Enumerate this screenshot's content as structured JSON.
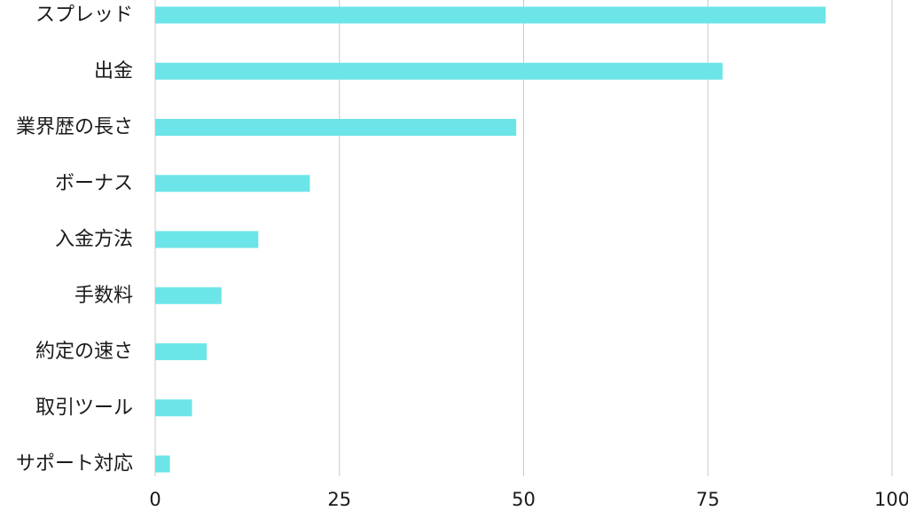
{
  "chart_data": {
    "type": "bar",
    "orientation": "horizontal",
    "categories": [
      "スプレッド",
      "出金",
      "業界歴の長さ",
      "ボーナス",
      "入金方法",
      "手数料",
      "約定の速さ",
      "取引ツール",
      "サポート対応"
    ],
    "values": [
      91,
      77,
      49,
      21,
      14,
      9,
      7,
      5,
      2
    ],
    "xlim": [
      0,
      100
    ],
    "x_ticks": [
      0,
      25,
      50,
      75,
      100
    ],
    "x_tick_labels": [
      "0",
      "25",
      "50",
      "75",
      "100"
    ],
    "grid": true,
    "legend": "none",
    "bar_color": "#6ce5e8",
    "grid_color": "#c9c9c9"
  }
}
